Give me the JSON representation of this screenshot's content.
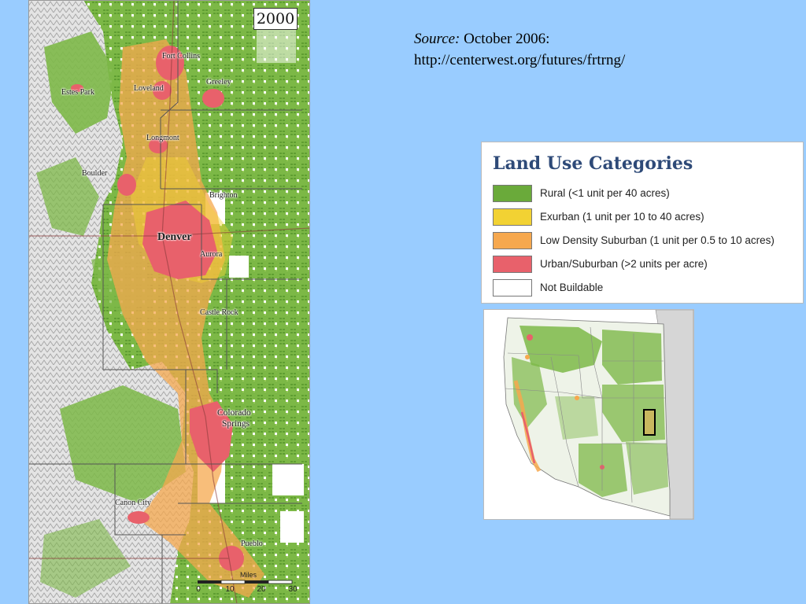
{
  "map": {
    "year": "2000",
    "cities": {
      "fort_collins": "Fort Collins",
      "estes_park": "Estes Park",
      "loveland": "Loveland",
      "greeley": "Greeley",
      "longmont": "Longmont",
      "boulder": "Boulder",
      "brighton": "Brighton",
      "denver": "Denver",
      "aurora": "Aurora",
      "castle_rock": "Castle Rock",
      "colorado_springs_1": "Colorado",
      "colorado_springs_2": "Springs",
      "canon_city": "Canon City",
      "pueblo": "Pueblo"
    },
    "scale": {
      "units": "Miles",
      "ticks": [
        "0",
        "10",
        "20",
        "30"
      ]
    }
  },
  "source": {
    "label": "Source:",
    "date": "October 2006:",
    "url": "http://centerwest.org/futures/frtrng/"
  },
  "legend": {
    "title": "Land Use Categories",
    "items": [
      {
        "label": "Rural (<1 unit per 40 acres)",
        "color": "#6aaa3a"
      },
      {
        "label": "Exurban (1 unit per 10 to 40 acres)",
        "color": "#f2d233"
      },
      {
        "label": "Low Density Suburban (1 unit per 0.5 to 10 acres)",
        "color": "#f6a84e"
      },
      {
        "label": "Urban/Suburban (>2 units per acre)",
        "color": "#e8616b"
      },
      {
        "label": "Not Buildable",
        "color": "#ffffff"
      }
    ]
  },
  "colors": {
    "background": "#99ccff",
    "rural": "#6aaa3a",
    "rural_light": "#8cc04a",
    "exurban": "#f2d233",
    "suburban": "#f6a84e",
    "urban": "#e8616b",
    "mountain": "#c8c8c8",
    "legend_title": "#2e4a78"
  }
}
